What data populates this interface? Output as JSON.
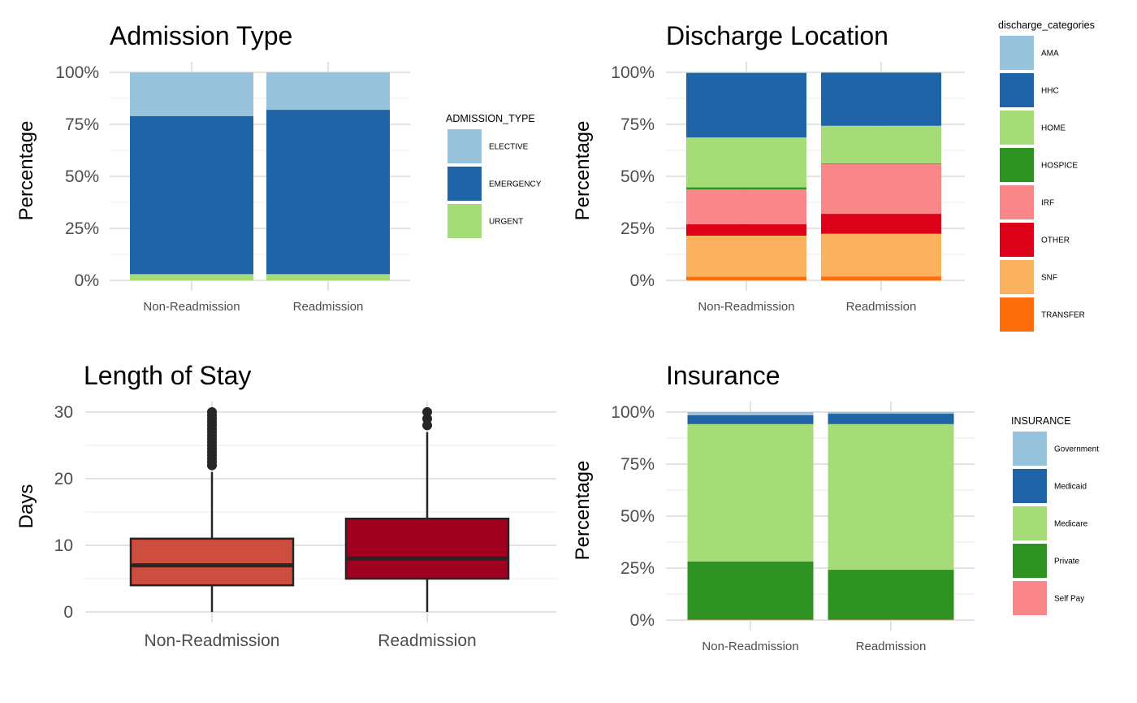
{
  "chart_data": [
    {
      "type": "bar",
      "stacked": true,
      "title": "Admission Type",
      "ylabel": "Percentage",
      "xlabel": "",
      "categories": [
        "Non-Readmission",
        "Readmission"
      ],
      "yticks": [
        "0%",
        "25%",
        "50%",
        "75%",
        "100%"
      ],
      "ylim": [
        0,
        100
      ],
      "legend_title": "ADMISSION_TYPE",
      "legend_position": "right",
      "series": [
        {
          "name": "ELECTIVE",
          "color": "#97c3dd",
          "values": [
            21,
            18
          ]
        },
        {
          "name": "EMERGENCY",
          "color": "#1f64a7",
          "values": [
            76,
            79
          ]
        },
        {
          "name": "URGENT",
          "color": "#a6dc78",
          "values": [
            3,
            3
          ]
        }
      ]
    },
    {
      "type": "bar",
      "stacked": true,
      "title": "Discharge Location",
      "ylabel": "Percentage",
      "xlabel": "",
      "categories": [
        "Non-Readmission",
        "Readmission"
      ],
      "yticks": [
        "0%",
        "25%",
        "50%",
        "75%",
        "100%"
      ],
      "ylim": [
        0,
        100
      ],
      "legend_title": "discharge_categories",
      "legend_position": "right",
      "series": [
        {
          "name": "AMA",
          "color": "#97c3dd",
          "values": [
            0.3,
            0.2
          ]
        },
        {
          "name": "HHC",
          "color": "#1f64a7",
          "values": [
            31,
            25.5
          ]
        },
        {
          "name": "HOME",
          "color": "#a6dc78",
          "values": [
            24,
            18
          ]
        },
        {
          "name": "HOSPICE",
          "color": "#2e9322",
          "values": [
            1,
            0.3
          ]
        },
        {
          "name": "IRF",
          "color": "#f9878a",
          "values": [
            16.7,
            24
          ]
        },
        {
          "name": "OTHER",
          "color": "#dc0019",
          "values": [
            5.5,
            9.6
          ]
        },
        {
          "name": "SNF",
          "color": "#fab25e",
          "values": [
            19.7,
            20.5
          ]
        },
        {
          "name": "TRANSFER",
          "color": "#fd6d0c",
          "values": [
            1.8,
            1.9
          ]
        }
      ]
    },
    {
      "type": "box",
      "title": "Length of Stay",
      "ylabel": "Days",
      "xlabel": "",
      "categories": [
        "Non-Readmission",
        "Readmission"
      ],
      "yticks": [
        "0",
        "10",
        "20",
        "30"
      ],
      "ylim": [
        0,
        30
      ],
      "boxes": [
        {
          "name": "Non-Readmission",
          "color": "#cd4d3e",
          "whisker_low": 0,
          "q1": 4,
          "median": 7,
          "q3": 11,
          "whisker_high": 21,
          "outliers": [
            22,
            22.5,
            23,
            23.5,
            24,
            24.5,
            25,
            25.5,
            26,
            26.5,
            27,
            27.5,
            28,
            28.5,
            29,
            29.5,
            30
          ]
        },
        {
          "name": "Readmission",
          "color": "#a10020",
          "whisker_low": 0,
          "q1": 5,
          "median": 8,
          "q3": 14,
          "whisker_high": 27,
          "outliers": [
            28,
            29,
            30
          ]
        }
      ]
    },
    {
      "type": "bar",
      "stacked": true,
      "title": "Insurance",
      "ylabel": "Percentage",
      "xlabel": "",
      "categories": [
        "Non-Readmission",
        "Readmission"
      ],
      "yticks": [
        "0%",
        "25%",
        "50%",
        "75%",
        "100%"
      ],
      "ylim": [
        0,
        100
      ],
      "legend_title": "INSURANCE",
      "legend_position": "right",
      "series": [
        {
          "name": "Government",
          "color": "#97c3dd",
          "values": [
            1.5,
            0.8
          ]
        },
        {
          "name": "Medicaid",
          "color": "#1f64a7",
          "values": [
            4.3,
            5
          ]
        },
        {
          "name": "Medicare",
          "color": "#a6dc78",
          "values": [
            66,
            70
          ]
        },
        {
          "name": "Private",
          "color": "#2e9322",
          "values": [
            28,
            24
          ]
        },
        {
          "name": "Self Pay",
          "color": "#f9878a",
          "values": [
            0.2,
            0.2
          ]
        }
      ]
    }
  ]
}
